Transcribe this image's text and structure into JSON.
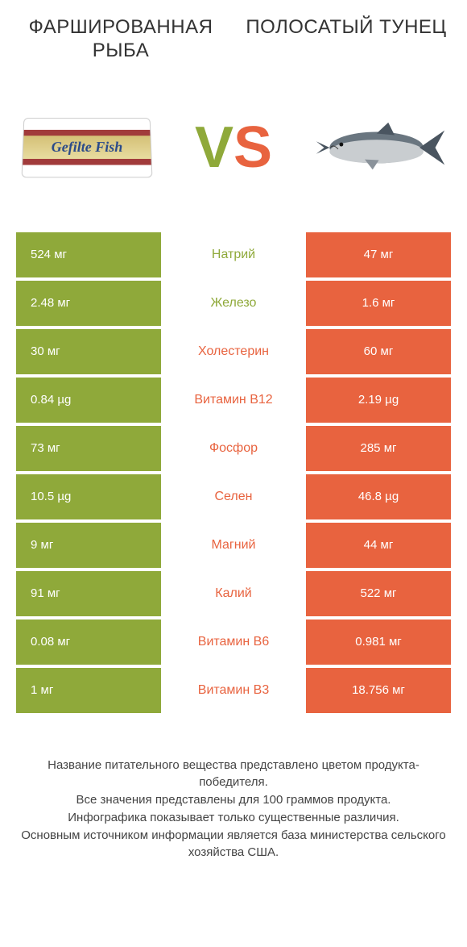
{
  "colors": {
    "green": "#8fa93a",
    "orange": "#e8633f",
    "text": "#333333",
    "background": "#ffffff"
  },
  "header": {
    "left_title": "ФАРШИРОВАННАЯ РЫБА",
    "right_title": "ПОЛОСАТЫЙ ТУНЕЦ"
  },
  "vs": {
    "v": "V",
    "s": "S"
  },
  "products": {
    "left_label": "Gefilte Fish",
    "right_label": "tuna-fish"
  },
  "table": {
    "rows": [
      {
        "left": "524 мг",
        "mid": "Натрий",
        "right": "47 мг",
        "winner": "left"
      },
      {
        "left": "2.48 мг",
        "mid": "Железо",
        "right": "1.6 мг",
        "winner": "left"
      },
      {
        "left": "30 мг",
        "mid": "Холестерин",
        "right": "60 мг",
        "winner": "right"
      },
      {
        "left": "0.84 µg",
        "mid": "Витамин B12",
        "right": "2.19 µg",
        "winner": "right"
      },
      {
        "left": "73 мг",
        "mid": "Фосфор",
        "right": "285 мг",
        "winner": "right"
      },
      {
        "left": "10.5 µg",
        "mid": "Селен",
        "right": "46.8 µg",
        "winner": "right"
      },
      {
        "left": "9 мг",
        "mid": "Магний",
        "right": "44 мг",
        "winner": "right"
      },
      {
        "left": "91 мг",
        "mid": "Калий",
        "right": "522 мг",
        "winner": "right"
      },
      {
        "left": "0.08 мг",
        "mid": "Витамин B6",
        "right": "0.981 мг",
        "winner": "right"
      },
      {
        "left": "1 мг",
        "mid": "Витамин B3",
        "right": "18.756 мг",
        "winner": "right"
      }
    ]
  },
  "footer": {
    "line1": "Название питательного вещества представлено цветом продукта-победителя.",
    "line2": "Все значения представлены для 100 граммов продукта.",
    "line3": "Инфографика показывает только существенные различия.",
    "line4": "Основным источником информации является база министерства сельского хозяйства США."
  }
}
